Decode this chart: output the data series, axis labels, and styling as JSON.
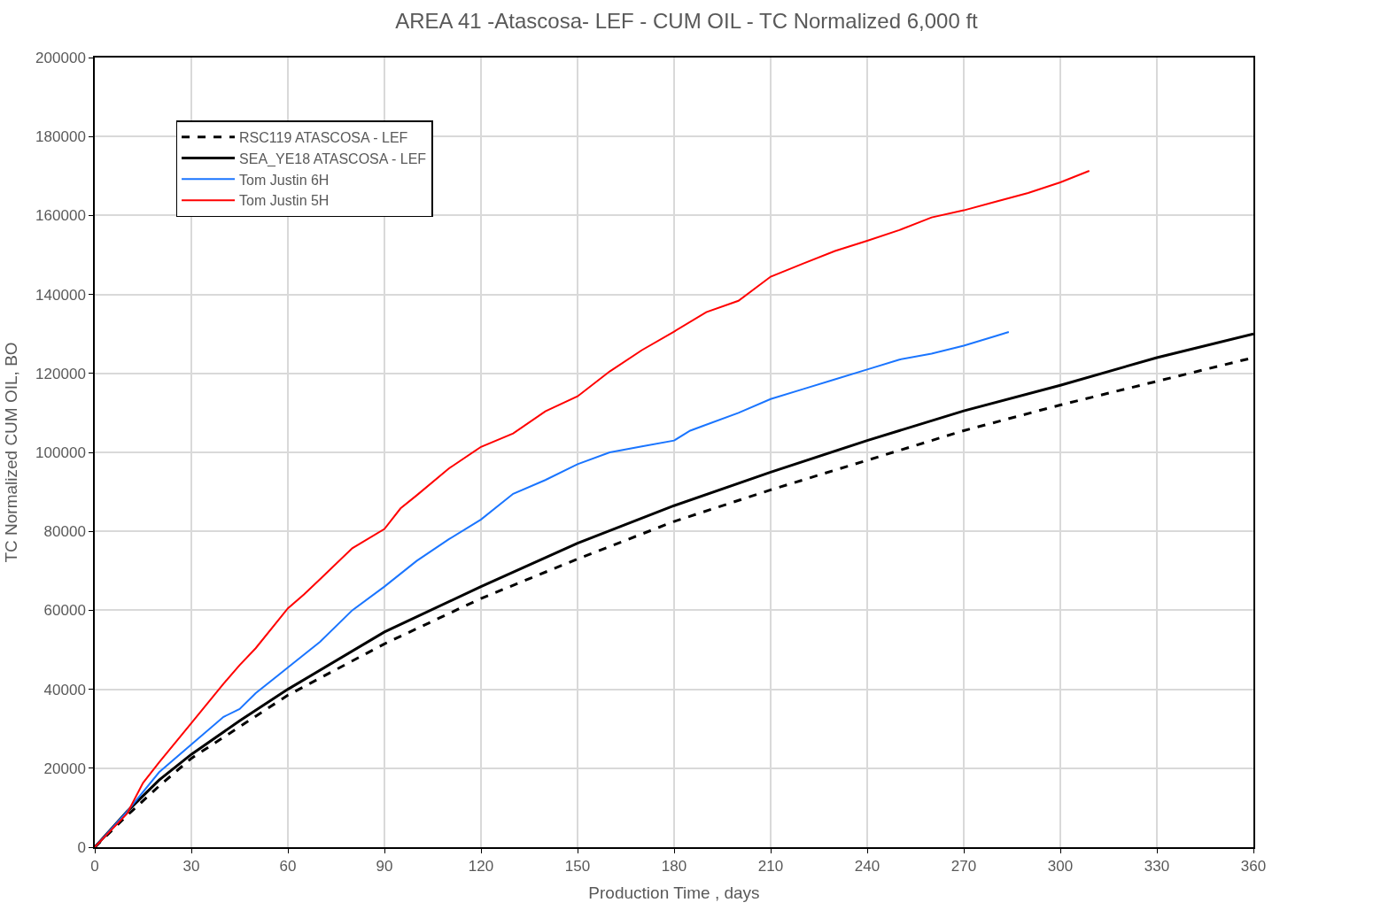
{
  "chart_data": {
    "type": "line",
    "title": "AREA 41 -Atascosa- LEF - CUM OIL - TC Normalized 6,000 ft",
    "xlabel": "Production Time , days",
    "ylabel": "TC Normalized CUM OIL, BO",
    "xlim": [
      0,
      360
    ],
    "xticks": [
      0,
      30,
      60,
      90,
      120,
      150,
      180,
      210,
      240,
      270,
      300,
      330,
      360
    ],
    "ylim": [
      0,
      200000
    ],
    "yticks": [
      0,
      20000,
      40000,
      60000,
      80000,
      100000,
      120000,
      140000,
      160000,
      180000,
      200000
    ],
    "grid": true,
    "legend": "top left",
    "marker": "none",
    "series": [
      {
        "name": "RSC119 ATASCOSA - LEF",
        "color": "#000000",
        "line_style": "dashed",
        "x": [
          0,
          10,
          20,
          30,
          60,
          90,
          120,
          150,
          180,
          210,
          240,
          270,
          300,
          330,
          360
        ],
        "values": [
          0,
          8000,
          15500,
          22500,
          38500,
          51500,
          63000,
          73000,
          82500,
          90500,
          98000,
          105500,
          112000,
          118000,
          124000
        ]
      },
      {
        "name": "SEA_YE18 ATASCOSA - LEF",
        "color": "#000000",
        "line_style": "solid",
        "x": [
          0,
          10,
          20,
          30,
          45,
          60,
          90,
          120,
          150,
          180,
          210,
          240,
          270,
          300,
          330,
          360
        ],
        "values": [
          0,
          9000,
          17000,
          23500,
          32000,
          40000,
          54500,
          66000,
          77000,
          86500,
          95000,
          103000,
          110500,
          117000,
          124000,
          130000
        ]
      },
      {
        "name": "Tom Justin 6H",
        "color": "#1a75ff",
        "line_style": "solid",
        "x": [
          0,
          10,
          20,
          30,
          40,
          45,
          50,
          60,
          70,
          80,
          90,
          100,
          110,
          120,
          130,
          140,
          150,
          160,
          170,
          180,
          185,
          190,
          200,
          210,
          220,
          230,
          240,
          250,
          260,
          270,
          280,
          284
        ],
        "values": [
          0,
          9000,
          19000,
          26000,
          33000,
          35000,
          39000,
          45500,
          52000,
          60000,
          66000,
          72500,
          78000,
          83000,
          89500,
          93000,
          97000,
          100000,
          101500,
          103000,
          105500,
          107000,
          110000,
          113500,
          116000,
          118500,
          121000,
          123500,
          125000,
          127000,
          129500,
          130500
        ]
      },
      {
        "name": "Tom Justin 5H",
        "color": "#ff0000",
        "line_style": "solid",
        "x": [
          0,
          10,
          15,
          20,
          30,
          40,
          45,
          50,
          60,
          65,
          70,
          80,
          90,
          95,
          100,
          110,
          120,
          130,
          140,
          150,
          160,
          170,
          180,
          190,
          200,
          210,
          220,
          230,
          240,
          250,
          260,
          270,
          280,
          290,
          300,
          309
        ],
        "values": [
          0,
          8500,
          16300,
          21500,
          31400,
          41400,
          46100,
          50400,
          60500,
          64000,
          67900,
          75700,
          80600,
          85800,
          89100,
          95900,
          101400,
          104800,
          110400,
          114200,
          120500,
          125900,
          130600,
          135500,
          138400,
          144500,
          147800,
          151000,
          153600,
          156300,
          159500,
          161300,
          163500,
          165700,
          168400,
          171300
        ]
      }
    ]
  }
}
